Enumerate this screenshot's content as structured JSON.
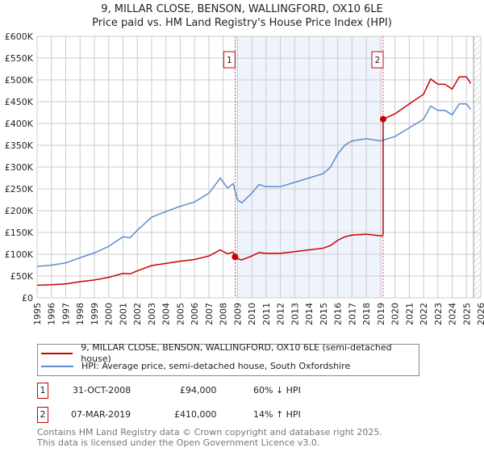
{
  "chart_data": {
    "type": "line",
    "title": "9, MILLAR CLOSE, BENSON, WALLINGFORD, OX10 6LE",
    "subtitle": "Price paid vs. HM Land Registry's House Price Index (HPI)",
    "xlim": [
      1995,
      2026
    ],
    "ylim": [
      0,
      600000
    ],
    "yticks": [
      0,
      50000,
      100000,
      150000,
      200000,
      250000,
      300000,
      350000,
      400000,
      450000,
      500000,
      550000,
      600000
    ],
    "ytick_labels": [
      "£0",
      "£50K",
      "£100K",
      "£150K",
      "£200K",
      "£250K",
      "£300K",
      "£350K",
      "£400K",
      "£450K",
      "£500K",
      "£550K",
      "£600K"
    ],
    "xtick_labels": [
      "1995",
      "1996",
      "1997",
      "1998",
      "1999",
      "2000",
      "2001",
      "2002",
      "2003",
      "2004",
      "2005",
      "2006",
      "2007",
      "2008",
      "2009",
      "2010",
      "2011",
      "2012",
      "2013",
      "2014",
      "2015",
      "2016",
      "2017",
      "2018",
      "2019",
      "2020",
      "2021",
      "2022",
      "2023",
      "2024",
      "2025",
      "2026"
    ],
    "grid": true,
    "shaded_region": [
      2008.83,
      2019.18
    ],
    "future_hatch_from": 2025.5,
    "series": [
      {
        "name": "9, MILLAR CLOSE, BENSON, WALLINGFORD, OX10 6LE (semi-detached house)",
        "color": "#cc0000",
        "x": [
          1995,
          1996,
          1997,
          1998,
          1999,
          2000,
          2001,
          2001.5,
          2002,
          2003,
          2004,
          2005,
          2006,
          2007,
          2007.8,
          2008.3,
          2008.7,
          2008.83,
          2009.0,
          2009.3,
          2010,
          2010.5,
          2011,
          2012,
          2013,
          2014,
          2015,
          2015.5,
          2016,
          2016.5,
          2017,
          2018,
          2019.1,
          2019.18,
          2019.18,
          2020,
          2021,
          2021.5,
          2022,
          2022.5,
          2023,
          2023.5,
          2024,
          2024.5,
          2025,
          2025.3
        ],
        "y": [
          29000,
          30000,
          32000,
          37000,
          41000,
          47000,
          56000,
          55000,
          62000,
          74000,
          79000,
          84000,
          88000,
          96000,
          110000,
          101000,
          105000,
          94000,
          90000,
          87000,
          96000,
          104000,
          102000,
          102000,
          106000,
          110000,
          114000,
          120000,
          132000,
          140000,
          144000,
          146000,
          142000,
          145000,
          410000,
          422000,
          445000,
          456000,
          467000,
          502000,
          490000,
          490000,
          479000,
          507000,
          507000,
          492000
        ]
      },
      {
        "name": "HPI: Average price, semi-detached house, South Oxfordshire",
        "color": "#5b8ccf",
        "x": [
          1995,
          1996,
          1997,
          1998,
          1999,
          2000,
          2001,
          2001.5,
          2002,
          2003,
          2004,
          2005,
          2006,
          2007,
          2007.8,
          2008.3,
          2008.7,
          2009.0,
          2009.3,
          2010,
          2010.5,
          2011,
          2012,
          2013,
          2014,
          2015,
          2015.5,
          2016,
          2016.5,
          2017,
          2018,
          2019,
          2020,
          2021,
          2021.5,
          2022,
          2022.5,
          2023,
          2023.5,
          2024,
          2024.5,
          2025,
          2025.3
        ],
        "y": [
          72000,
          75000,
          80000,
          92000,
          103000,
          118000,
          140000,
          138000,
          155000,
          185000,
          198000,
          210000,
          220000,
          240000,
          275000,
          252000,
          262000,
          225000,
          218000,
          240000,
          260000,
          255000,
          255000,
          265000,
          275000,
          285000,
          300000,
          330000,
          350000,
          360000,
          365000,
          360000,
          370000,
          390000,
          400000,
          410000,
          440000,
          430000,
          430000,
          420000,
          445000,
          445000,
          432000
        ]
      }
    ],
    "sales": [
      {
        "label": "1",
        "x": 2008.83,
        "y": 94000
      },
      {
        "label": "2",
        "x": 2019.18,
        "y": 410000
      }
    ]
  },
  "legend": {
    "items": [
      {
        "label": "9, MILLAR CLOSE, BENSON, WALLINGFORD, OX10 6LE (semi-detached house)",
        "color": "#cc0000"
      },
      {
        "label": "HPI: Average price, semi-detached house, South Oxfordshire",
        "color": "#5b8ccf"
      }
    ],
    "placement": "below"
  },
  "transactions": [
    {
      "num": "1",
      "date": "31-OCT-2008",
      "price": "£94,000",
      "hpi": "60% ↓ HPI"
    },
    {
      "num": "2",
      "date": "07-MAR-2019",
      "price": "£410,000",
      "hpi": "14% ↑ HPI"
    }
  ],
  "footer": {
    "line1": "Contains HM Land Registry data © Crown copyright and database right 2025.",
    "line2": "This data is licensed under the Open Government Licence v3.0."
  }
}
